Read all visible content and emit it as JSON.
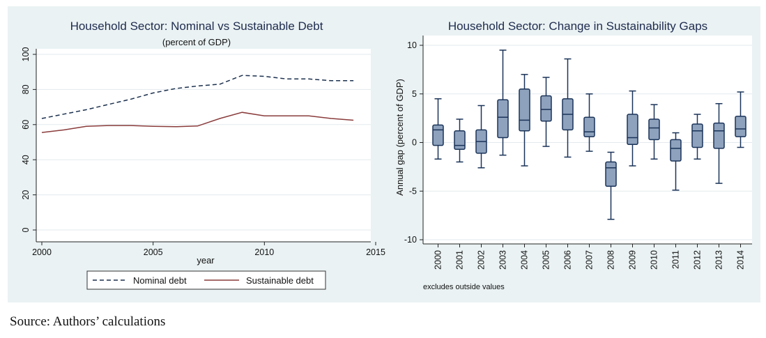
{
  "colors": {
    "background": "#eaf2f3",
    "plot_bg": "#ffffff",
    "nominal": "#1a2f4d",
    "sustainable": "#8a3b3b",
    "box_fill": "#8ea2bd",
    "box_stroke": "#1a3358",
    "grid": "#e3eaee"
  },
  "source": "Source: Authors’ calculations",
  "chart_data": [
    {
      "type": "line",
      "title": "Household Sector: Nominal vs Sustainable Debt",
      "subtitle": "(percent of GDP)",
      "xlabel": "year",
      "ylabel": "",
      "xlim": [
        2000,
        2015
      ],
      "ylim": [
        0,
        100
      ],
      "x_ticks": [
        "2000",
        "2005",
        "2010",
        "2015"
      ],
      "y_ticks": [
        "0",
        "20",
        "40",
        "60",
        "80",
        "100"
      ],
      "grid": true,
      "legend_position": "bottom",
      "series": [
        {
          "name": "Nominal debt",
          "style": "dashed",
          "x": [
            2000,
            2001,
            2002,
            2003,
            2004,
            2005,
            2006,
            2007,
            2008,
            2009,
            2010,
            2011,
            2012,
            2013,
            2014
          ],
          "y": [
            63.5,
            66,
            68.5,
            71.5,
            74.5,
            78,
            80.5,
            82,
            83,
            88,
            87.5,
            86,
            86,
            85,
            85
          ]
        },
        {
          "name": "Sustainable debt",
          "style": "solid",
          "x": [
            2000,
            2001,
            2002,
            2003,
            2004,
            2005,
            2006,
            2007,
            2008,
            2009,
            2010,
            2011,
            2012,
            2013,
            2014
          ],
          "y": [
            55.5,
            57,
            59,
            59.5,
            59.5,
            59,
            58.8,
            59.2,
            63.5,
            67,
            65,
            65,
            65,
            63.5,
            62.5
          ]
        }
      ]
    },
    {
      "type": "box",
      "title": "Household Sector: Change in Sustainability Gaps",
      "ylabel": "Annual gap (percent of GDP)",
      "xlabel": "",
      "ylim": [
        -10,
        10
      ],
      "y_ticks": [
        "-10",
        "-5",
        "0",
        "5",
        "10"
      ],
      "grid": true,
      "note": "excludes outside values",
      "categories": [
        "2000",
        "2001",
        "2002",
        "2003",
        "2004",
        "2005",
        "2006",
        "2007",
        "2008",
        "2009",
        "2010",
        "2011",
        "2012",
        "2013",
        "2014"
      ],
      "boxes": [
        {
          "min": -1.7,
          "q1": -0.3,
          "median": 1.3,
          "q3": 1.8,
          "max": 4.5
        },
        {
          "min": -2.0,
          "q1": -0.7,
          "median": -0.3,
          "q3": 1.2,
          "max": 2.4
        },
        {
          "min": -2.6,
          "q1": -1.1,
          "median": 0.1,
          "q3": 1.3,
          "max": 3.8
        },
        {
          "min": -1.3,
          "q1": 0.5,
          "median": 2.6,
          "q3": 4.4,
          "max": 9.5
        },
        {
          "min": -2.4,
          "q1": 1.2,
          "median": 2.3,
          "q3": 5.5,
          "max": 7.0
        },
        {
          "min": -0.4,
          "q1": 2.2,
          "median": 3.4,
          "q3": 4.8,
          "max": 6.7
        },
        {
          "min": -1.5,
          "q1": 1.3,
          "median": 2.9,
          "q3": 4.5,
          "max": 8.6
        },
        {
          "min": -0.9,
          "q1": 0.6,
          "median": 1.1,
          "q3": 2.6,
          "max": 5.0
        },
        {
          "min": -7.9,
          "q1": -4.5,
          "median": -2.6,
          "q3": -2.0,
          "max": -1.0
        },
        {
          "min": -2.4,
          "q1": -0.2,
          "median": 0.5,
          "q3": 2.9,
          "max": 5.3
        },
        {
          "min": -1.7,
          "q1": 0.3,
          "median": 1.5,
          "q3": 2.4,
          "max": 3.9
        },
        {
          "min": -4.9,
          "q1": -1.9,
          "median": -0.6,
          "q3": 0.3,
          "max": 1.0
        },
        {
          "min": -1.7,
          "q1": -0.5,
          "median": 1.2,
          "q3": 1.9,
          "max": 2.9
        },
        {
          "min": -4.2,
          "q1": -0.6,
          "median": 1.2,
          "q3": 2.0,
          "max": 4.0
        },
        {
          "min": -0.5,
          "q1": 0.6,
          "median": 1.4,
          "q3": 2.7,
          "max": 5.2
        }
      ]
    }
  ]
}
